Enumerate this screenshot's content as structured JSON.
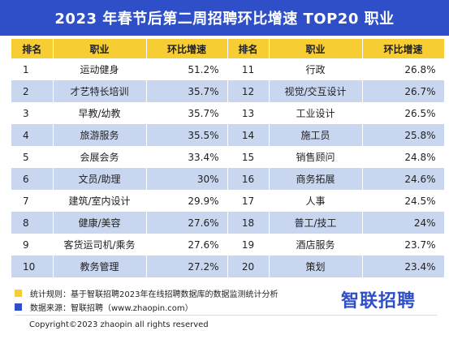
{
  "title": "2023 年春节后第二周招聘环比增速 TOP20 职业",
  "headers": {
    "rank": "排名",
    "job": "职业",
    "growth": "环比增速"
  },
  "chart_data": {
    "type": "table",
    "title": "2023 年春节后第二周招聘环比增速 TOP20 职业",
    "columns": [
      "排名",
      "职业",
      "环比增速"
    ],
    "rows": [
      {
        "rank": "1",
        "job": "运动健身",
        "growth": "51.2%"
      },
      {
        "rank": "2",
        "job": "才艺特长培训",
        "growth": "35.7%"
      },
      {
        "rank": "3",
        "job": "早教/幼教",
        "growth": "35.7%"
      },
      {
        "rank": "4",
        "job": "旅游服务",
        "growth": "35.5%"
      },
      {
        "rank": "5",
        "job": "会展会务",
        "growth": "33.4%"
      },
      {
        "rank": "6",
        "job": "文员/助理",
        "growth": "30%"
      },
      {
        "rank": "7",
        "job": "建筑/室内设计",
        "growth": "29.9%"
      },
      {
        "rank": "8",
        "job": "健康/美容",
        "growth": "27.6%"
      },
      {
        "rank": "9",
        "job": "客货运司机/乘务",
        "growth": "27.6%"
      },
      {
        "rank": "10",
        "job": "教务管理",
        "growth": "27.2%"
      },
      {
        "rank": "11",
        "job": "行政",
        "growth": "26.8%"
      },
      {
        "rank": "12",
        "job": "视觉/交互设计",
        "growth": "26.7%"
      },
      {
        "rank": "13",
        "job": "工业设计",
        "growth": "26.5%"
      },
      {
        "rank": "14",
        "job": "施工员",
        "growth": "25.8%"
      },
      {
        "rank": "15",
        "job": "销售顾问",
        "growth": "24.8%"
      },
      {
        "rank": "16",
        "job": "商务拓展",
        "growth": "24.6%"
      },
      {
        "rank": "17",
        "job": "人事",
        "growth": "24.5%"
      },
      {
        "rank": "18",
        "job": "普工/技工",
        "growth": "24%"
      },
      {
        "rank": "19",
        "job": "酒店服务",
        "growth": "23.7%"
      },
      {
        "rank": "20",
        "job": "策划",
        "growth": "23.4%"
      }
    ]
  },
  "notes": {
    "rule": "统计规则：基于智联招聘2023年在线招聘数据库的数据监测统计分析",
    "source": "数据来源：智联招聘（www.zhaopin.com）",
    "rule_color": "#f7cd34",
    "source_color": "#2f4fc9"
  },
  "logo": "智联招聘",
  "copyright": "Copyright©2023 zhaopin all rights reserved",
  "colors": {
    "header_bg": "#2f4fc9",
    "column_header_bg": "#f7cd34",
    "row_alt_bg": "#c8d6ef"
  }
}
